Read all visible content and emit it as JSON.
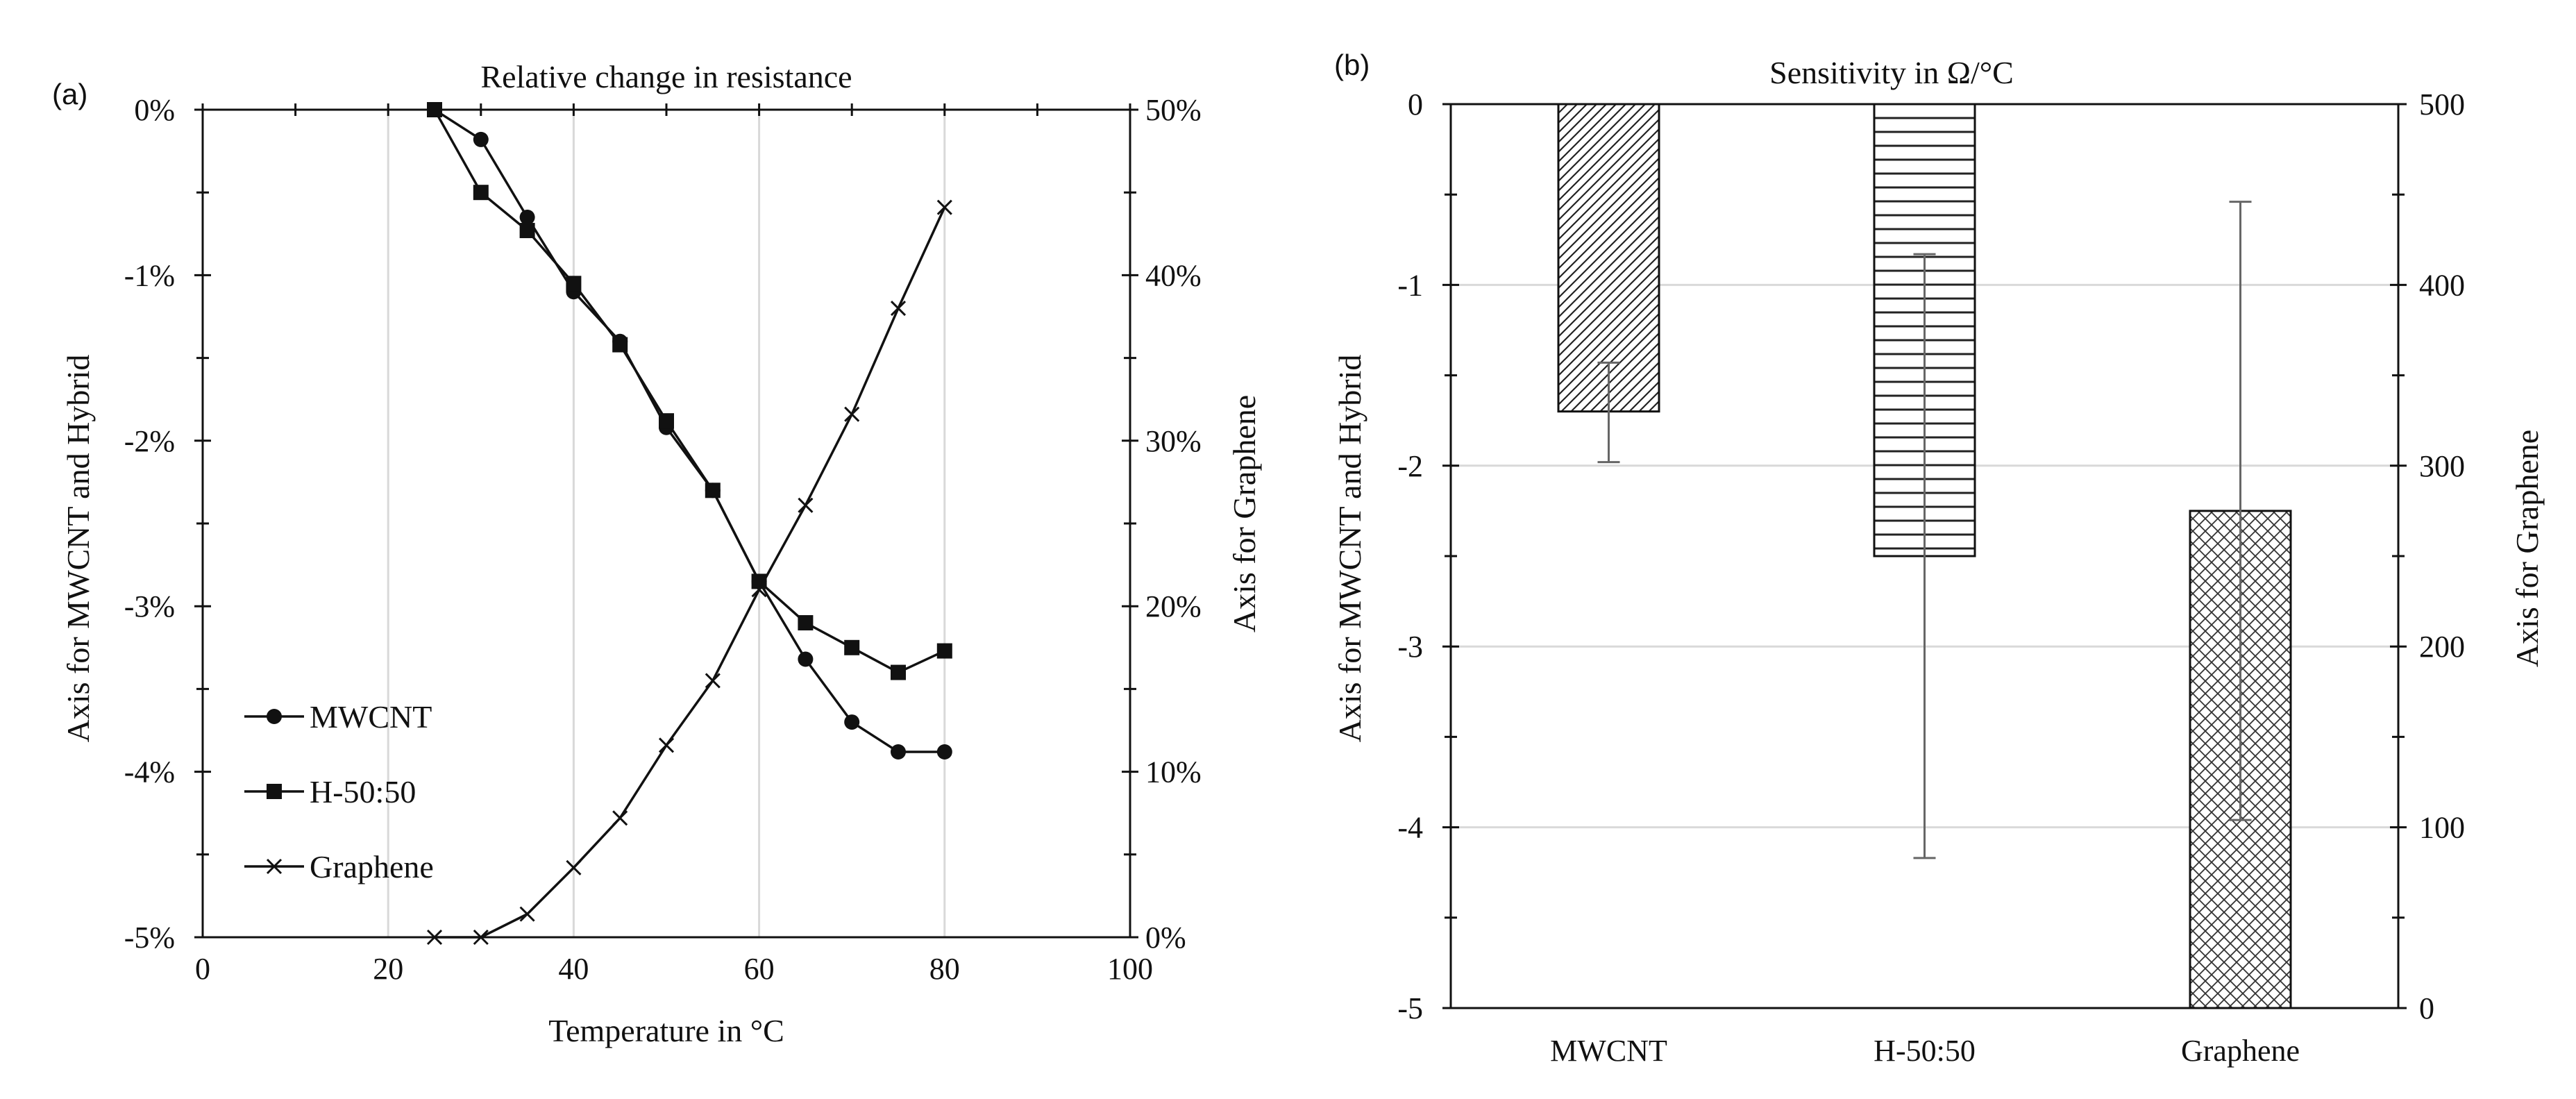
{
  "chart_data": [
    {
      "id": "a",
      "type": "line",
      "panel_label": "(a)",
      "title": "Relative change in resistance",
      "xlabel": "Temperature in °C",
      "ylabel_left": "Axis for MWCNT and Hybrid",
      "ylabel_right": "Axis for Graphene",
      "xlim": [
        0,
        100
      ],
      "xticks": [
        "0",
        "20",
        "40",
        "60",
        "80",
        "100"
      ],
      "ylim_left": [
        -5,
        0
      ],
      "yticks_left": [
        "0%",
        "-1%",
        "-2%",
        "-3%",
        "-4%",
        "-5%"
      ],
      "ylim_right": [
        0,
        50
      ],
      "yticks_right": [
        "50%",
        "40%",
        "30%",
        "20%",
        "10%",
        "0%"
      ],
      "grid": "vertical",
      "legend_position": "lower-left",
      "series": [
        {
          "name": "MWCNT",
          "marker": "circle",
          "axis": "left",
          "x": [
            25,
            30,
            35,
            40,
            45,
            50,
            55,
            60,
            65,
            70,
            75,
            80
          ],
          "y": [
            0,
            -0.18,
            -0.65,
            -1.1,
            -1.4,
            -1.92,
            -2.3,
            -2.85,
            -3.32,
            -3.7,
            -3.88,
            -3.88
          ]
        },
        {
          "name": "H-50:50",
          "marker": "square",
          "axis": "left",
          "x": [
            25,
            30,
            35,
            40,
            45,
            50,
            55,
            60,
            65,
            70,
            75,
            80
          ],
          "y": [
            0,
            -0.5,
            -0.73,
            -1.05,
            -1.42,
            -1.88,
            -2.3,
            -2.85,
            -3.1,
            -3.25,
            -3.4,
            -3.27
          ]
        },
        {
          "name": "Graphene",
          "marker": "x",
          "axis": "right",
          "x": [
            25,
            30,
            35,
            40,
            45,
            50,
            55,
            60,
            65,
            70,
            75,
            80
          ],
          "y": [
            0,
            0,
            1.4,
            4.2,
            7.2,
            11.6,
            15.5,
            21,
            26.1,
            31.6,
            38,
            44.1
          ]
        }
      ]
    },
    {
      "id": "b",
      "type": "bar",
      "panel_label": "(b)",
      "title": "Sensitivity in Ω/°C",
      "ylabel_left": "Axis for MWCNT and Hybrid",
      "ylabel_right": "Axis for Graphene",
      "ylim_left": [
        -5,
        0
      ],
      "yticks_left": [
        "0",
        "-1",
        "-2",
        "-3",
        "-4",
        "-5"
      ],
      "ylim_right": [
        0,
        500
      ],
      "yticks_right": [
        "500",
        "400",
        "300",
        "200",
        "100",
        "0"
      ],
      "grid": "horizontal",
      "categories": [
        "MWCNT",
        "H-50:50",
        "Graphene"
      ],
      "bars": [
        {
          "category": "MWCNT",
          "axis": "left",
          "value": -1.7,
          "error_low": -1.98,
          "error_high": -1.43,
          "pattern": "diagonal"
        },
        {
          "category": "H-50:50",
          "axis": "left",
          "value": -2.5,
          "error_low": -4.17,
          "error_high": -0.83,
          "pattern": "horizontal"
        },
        {
          "category": "Graphene",
          "axis": "right",
          "value": 275,
          "error_low": 104,
          "error_high": 446,
          "pattern": "crosshatch"
        }
      ]
    }
  ]
}
